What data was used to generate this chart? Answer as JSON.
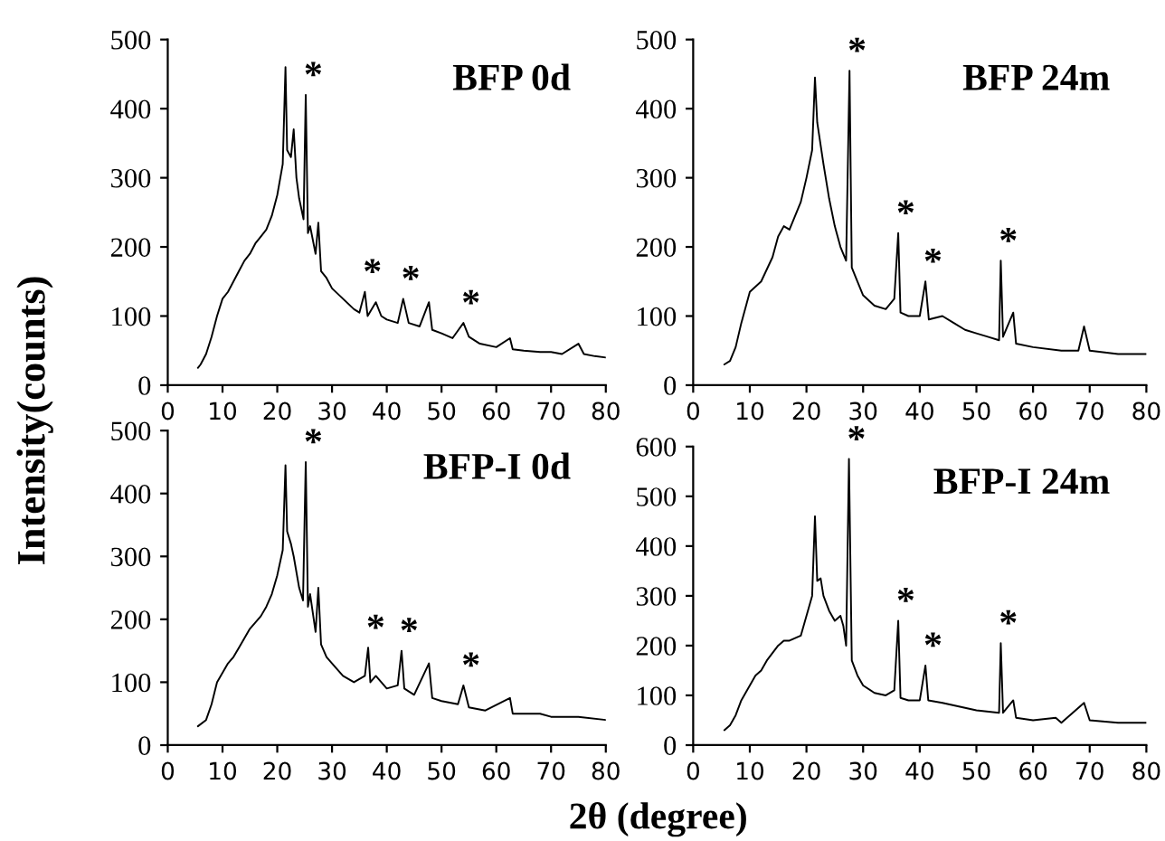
{
  "chart_data": [
    {
      "type": "line",
      "title": "BFP 0d",
      "ylabel": "Intensity(counts)",
      "xlim": [
        0,
        80
      ],
      "ylim": [
        0,
        500
      ],
      "xticks": [
        0,
        10,
        20,
        30,
        40,
        50,
        60,
        70,
        80
      ],
      "yticks": [
        0,
        100,
        200,
        300,
        400,
        500
      ],
      "series": [
        {
          "color": "#000000",
          "x": [
            5.5,
            6,
            7,
            8,
            9,
            10,
            11,
            12,
            13,
            14,
            15,
            16,
            17,
            18,
            19,
            20,
            21,
            21.5,
            21.8,
            22.5,
            23,
            23.5,
            24,
            24.8,
            25.2,
            25.6,
            26,
            27,
            27.5,
            28,
            29,
            30,
            32,
            34,
            35,
            36,
            36.5,
            38,
            39,
            40,
            42,
            43,
            44,
            46,
            47.7,
            48.3,
            50,
            52,
            54,
            55,
            57,
            60,
            62.5,
            63,
            65,
            68,
            70,
            72,
            75,
            76,
            78,
            80
          ],
          "values": [
            25,
            30,
            45,
            70,
            100,
            125,
            135,
            150,
            165,
            180,
            190,
            205,
            215,
            225,
            245,
            275,
            320,
            460,
            340,
            330,
            370,
            300,
            270,
            240,
            420,
            220,
            230,
            190,
            235,
            165,
            155,
            140,
            125,
            110,
            105,
            135,
            100,
            120,
            100,
            95,
            90,
            125,
            90,
            85,
            120,
            80,
            75,
            68,
            90,
            70,
            60,
            55,
            68,
            52,
            50,
            48,
            48,
            45,
            60,
            45,
            42,
            40
          ]
        }
      ],
      "annotations": [
        {
          "text": "*",
          "x": 25.2,
          "y": 420
        },
        {
          "text": "*",
          "x": 36,
          "y": 135
        },
        {
          "text": "*",
          "x": 43,
          "y": 125
        },
        {
          "text": "*",
          "x": 54,
          "y": 90
        }
      ]
    },
    {
      "type": "line",
      "title": "BFP 24m",
      "xlim": [
        0,
        80
      ],
      "ylim": [
        0,
        500
      ],
      "xticks": [
        0,
        10,
        20,
        30,
        40,
        50,
        60,
        70,
        80
      ],
      "yticks": [
        0,
        100,
        200,
        300,
        400,
        500
      ],
      "series": [
        {
          "color": "#000000",
          "x": [
            5.5,
            6.5,
            7.5,
            8.5,
            9.5,
            10,
            12,
            14,
            15,
            16,
            17,
            18,
            19,
            20,
            21,
            21.5,
            21.9,
            23,
            24,
            25,
            26,
            27,
            27.6,
            28,
            29,
            30,
            32,
            34,
            35.5,
            36.2,
            36.6,
            38,
            40,
            41,
            41.6,
            44,
            46,
            48,
            50,
            52,
            54,
            54.3,
            54.7,
            56.5,
            57,
            60,
            65,
            68,
            69,
            70,
            75,
            80
          ],
          "values": [
            30,
            35,
            55,
            90,
            120,
            135,
            150,
            185,
            215,
            230,
            225,
            245,
            265,
            300,
            340,
            445,
            380,
            320,
            270,
            230,
            200,
            180,
            455,
            170,
            150,
            130,
            115,
            110,
            125,
            220,
            105,
            100,
            100,
            150,
            95,
            100,
            90,
            80,
            75,
            70,
            65,
            180,
            70,
            105,
            60,
            55,
            50,
            50,
            85,
            50,
            45,
            45
          ]
        }
      ],
      "annotations": [
        {
          "text": "*",
          "x": 27.6,
          "y": 455
        },
        {
          "text": "*",
          "x": 36.2,
          "y": 220
        },
        {
          "text": "*",
          "x": 41,
          "y": 150
        },
        {
          "text": "*",
          "x": 54.3,
          "y": 180
        }
      ]
    },
    {
      "type": "line",
      "title": "BFP-I 0d",
      "xlabel": "2θ (degree)",
      "xlim": [
        0,
        80
      ],
      "ylim": [
        0,
        500
      ],
      "xticks": [
        0,
        10,
        20,
        30,
        40,
        50,
        60,
        70,
        80
      ],
      "yticks": [
        0,
        100,
        200,
        300,
        400,
        500
      ],
      "series": [
        {
          "color": "#000000",
          "x": [
            5.5,
            7,
            8,
            9,
            10,
            11,
            12,
            13,
            14,
            15,
            16,
            17,
            18,
            19,
            20,
            21,
            21.5,
            21.8,
            22.5,
            23,
            24,
            24.7,
            25.2,
            25.6,
            26,
            27,
            27.5,
            28,
            29,
            30,
            32,
            34,
            36,
            36.6,
            37,
            38,
            40,
            42,
            42.7,
            43.2,
            45,
            47.7,
            48.3,
            50,
            53,
            54,
            55,
            58,
            62.5,
            63,
            65,
            68,
            70,
            75,
            80
          ],
          "values": [
            30,
            40,
            65,
            100,
            115,
            130,
            140,
            155,
            170,
            185,
            195,
            205,
            220,
            240,
            270,
            310,
            445,
            340,
            320,
            300,
            250,
            230,
            450,
            220,
            240,
            180,
            250,
            160,
            140,
            130,
            110,
            100,
            110,
            155,
            100,
            110,
            90,
            95,
            150,
            90,
            80,
            130,
            75,
            70,
            65,
            95,
            60,
            55,
            75,
            50,
            50,
            50,
            45,
            45,
            40
          ]
        }
      ],
      "annotations": [
        {
          "text": "*",
          "x": 25.2,
          "y": 450
        },
        {
          "text": "*",
          "x": 36.6,
          "y": 155
        },
        {
          "text": "*",
          "x": 42.7,
          "y": 150
        },
        {
          "text": "*",
          "x": 54,
          "y": 95
        }
      ]
    },
    {
      "type": "line",
      "title": "BFP-I 24m",
      "xlim": [
        0,
        80
      ],
      "ylim": [
        0,
        600
      ],
      "xticks": [
        0,
        10,
        20,
        30,
        40,
        50,
        60,
        70,
        80
      ],
      "yticks": [
        0,
        100,
        200,
        300,
        400,
        500,
        600
      ],
      "series": [
        {
          "color": "#000000",
          "x": [
            5.5,
            6.5,
            7.5,
            8.5,
            10,
            11,
            12,
            13,
            14,
            15,
            16,
            17,
            18,
            19,
            20,
            21,
            21.5,
            21.9,
            22.5,
            23,
            24,
            25,
            26,
            26.5,
            27,
            27.5,
            28,
            29,
            30,
            32,
            34,
            35.5,
            36.2,
            36.6,
            38,
            40,
            41,
            41.5,
            44,
            46,
            50,
            54,
            54.3,
            54.7,
            56.5,
            57,
            60,
            64,
            65,
            69,
            70,
            75,
            80
          ],
          "values": [
            30,
            40,
            60,
            90,
            120,
            140,
            150,
            170,
            185,
            200,
            210,
            210,
            215,
            220,
            260,
            300,
            460,
            330,
            335,
            300,
            270,
            250,
            260,
            240,
            200,
            575,
            170,
            140,
            120,
            105,
            100,
            110,
            250,
            95,
            90,
            90,
            160,
            90,
            85,
            80,
            70,
            65,
            205,
            65,
            90,
            55,
            50,
            55,
            45,
            85,
            50,
            45,
            45
          ]
        }
      ],
      "annotations": [
        {
          "text": "*",
          "x": 27.5,
          "y": 575
        },
        {
          "text": "*",
          "x": 36.2,
          "y": 250
        },
        {
          "text": "*",
          "x": 41,
          "y": 160
        },
        {
          "text": "*",
          "x": 54.3,
          "y": 205
        }
      ]
    }
  ]
}
